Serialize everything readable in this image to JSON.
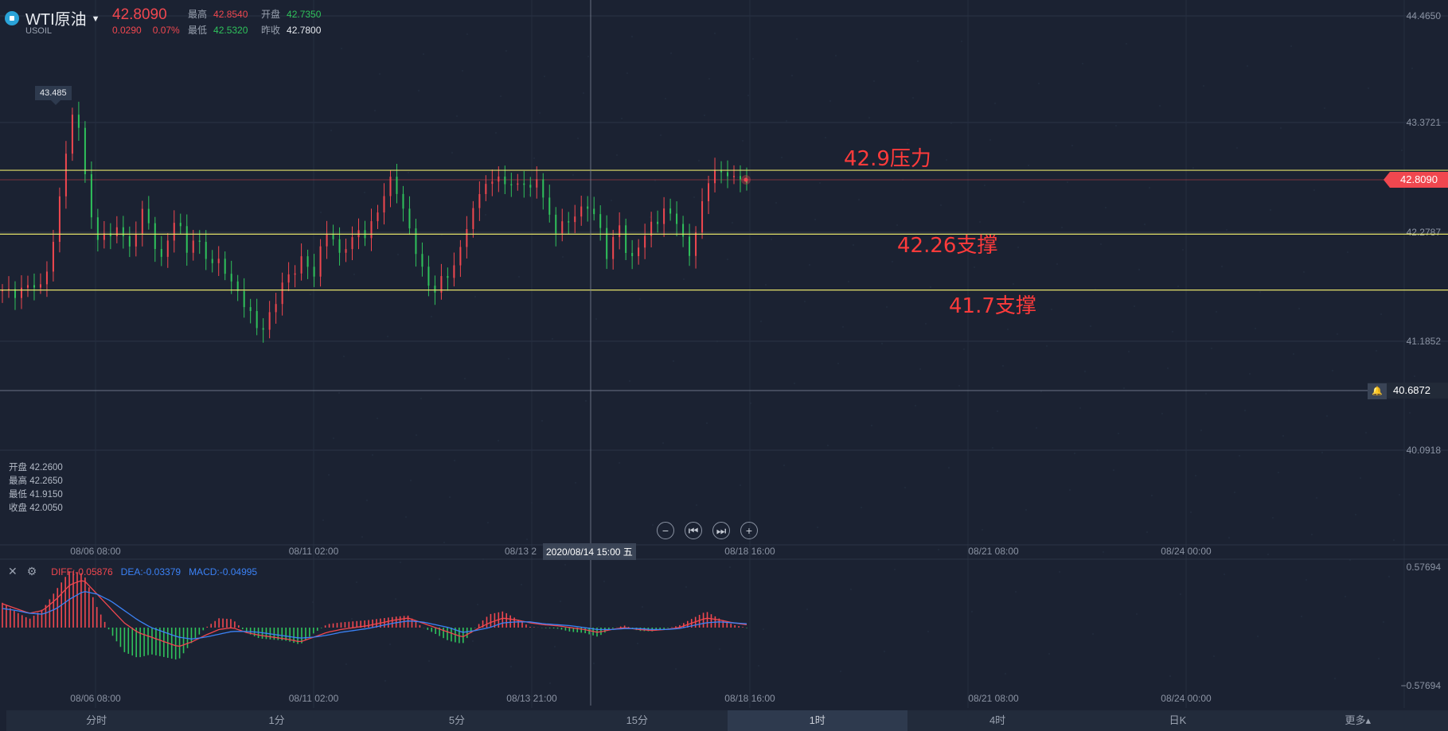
{
  "header": {
    "symbol": "WTI原油",
    "code": "USOIL",
    "price": "42.8090",
    "change": "0.0290",
    "change_pct": "0.07%",
    "high_label": "最高",
    "high": "42.8540",
    "open_label": "开盘",
    "open": "42.7350",
    "low_label": "最低",
    "low": "42.5320",
    "prev_label": "昨收",
    "prev_close": "42.7800"
  },
  "ohlc_info": {
    "open": "开盘 42.2600",
    "high": "最高 42.2650",
    "low": "最低 41.9150",
    "close": "收盘 42.0050"
  },
  "price_axis": [
    "44.4650",
    "43.3721",
    "42.2787",
    "41.1852",
    "40.0918"
  ],
  "current_price_tag": "42.8090",
  "alert_price": "40.6872",
  "max_label": "43.485",
  "annotations": [
    "42.9压力",
    "42.26支撑",
    "41.7支撑"
  ],
  "time_axis": [
    "08/06 08:00",
    "08/11 02:00",
    "08/13 2",
    "08/18 16:00",
    "08/21 08:00",
    "08/24 00:00"
  ],
  "macd_time_axis": [
    "08/06 08:00",
    "08/11 02:00",
    "08/13 21:00",
    "08/18 16:00",
    "08/21 08:00",
    "08/24 00:00"
  ],
  "crosshair_time": "2020/08/14 15:00 五",
  "macd": {
    "diff": "DIFF:-0.05876",
    "dea": "DEA:-0.03379",
    "macd": "MACD:-0.04995",
    "axis_top": "0.57694",
    "axis_bottom": "−0.57694"
  },
  "nav_buttons": [
    "−",
    "⏮",
    "⏭",
    "+"
  ],
  "timeframes": [
    "分时",
    "1分",
    "5分",
    "15分",
    "1时",
    "4时",
    "日K",
    "更多▴"
  ],
  "active_timeframe": "1时",
  "colors": {
    "up": "#f0474f",
    "down": "#2fc25b",
    "level": "#e6e36a",
    "dea": "#3b82f6",
    "bg": "#1b2232"
  },
  "icons": [
    "dropdown-caret-icon",
    "close-icon",
    "settings-icon",
    "bell-icon"
  ],
  "chart_data": {
    "type": "candlestick",
    "price_range": [
      39.6,
      44.6
    ],
    "levels": [
      {
        "label": "42.9压力",
        "value": 42.9
      },
      {
        "label": "42.26支撑",
        "value": 42.26
      },
      {
        "label": "41.7支撑",
        "value": 41.7
      }
    ],
    "close_path": [
      41.7,
      41.68,
      41.66,
      41.7,
      41.74,
      41.76,
      41.72,
      41.9,
      42.2,
      42.6,
      43.1,
      43.45,
      43.3,
      42.9,
      42.4,
      42.2,
      42.3,
      42.2,
      42.35,
      42.25,
      42.1,
      42.3,
      42.5,
      42.35,
      42.15,
      42.0,
      42.2,
      42.4,
      42.3,
      42.1,
      42.2,
      42.15,
      42.05,
      41.95,
      42.0,
      41.9,
      41.75,
      41.7,
      41.55,
      41.45,
      41.35,
      41.3,
      41.45,
      41.6,
      41.75,
      41.85,
      41.9,
      42.0,
      41.95,
      41.85,
      42.1,
      42.3,
      42.2,
      42.05,
      42.15,
      42.2,
      42.3,
      42.25,
      42.35,
      42.5,
      42.65,
      42.8,
      42.7,
      42.5,
      42.3,
      42.1,
      41.9,
      41.75,
      41.7,
      41.8,
      41.85,
      41.95,
      42.1,
      42.35,
      42.5,
      42.65,
      42.8,
      42.75,
      42.85,
      42.78,
      42.72,
      42.8,
      42.75,
      42.7,
      42.85,
      42.6,
      42.45,
      42.3,
      42.35,
      42.4,
      42.45,
      42.5,
      42.55,
      42.45,
      42.3,
      42.05,
      42.2,
      42.35,
      42.1,
      42.0,
      42.15,
      42.25,
      42.35,
      42.4,
      42.5,
      42.45,
      42.4,
      42.2,
      42.05,
      42.3,
      42.55,
      42.8,
      42.9,
      42.85,
      42.88,
      42.82,
      42.8,
      42.81
    ],
    "diff_path": [
      0.25,
      0.2,
      0.15,
      0.18,
      0.3,
      0.45,
      0.5,
      0.35,
      0.2,
      0.05,
      -0.05,
      -0.1,
      -0.15,
      -0.2,
      -0.15,
      -0.08,
      -0.02,
      0.0,
      -0.05,
      -0.08,
      -0.1,
      -0.12,
      -0.15,
      -0.1,
      -0.05,
      -0.02,
      0.0,
      0.02,
      0.05,
      0.08,
      0.1,
      0.05,
      0.0,
      -0.05,
      -0.1,
      -0.02,
      0.05,
      0.1,
      0.08,
      0.05,
      0.03,
      0.02,
      0.0,
      -0.02,
      -0.05,
      -0.02,
      0.0,
      -0.02,
      -0.03,
      -0.02,
      0.0,
      0.05,
      0.1,
      0.08,
      0.05,
      0.03
    ],
    "dea_path": [
      0.2,
      0.18,
      0.15,
      0.14,
      0.2,
      0.3,
      0.38,
      0.35,
      0.28,
      0.18,
      0.08,
      0.0,
      -0.05,
      -0.1,
      -0.12,
      -0.1,
      -0.07,
      -0.04,
      -0.04,
      -0.05,
      -0.07,
      -0.09,
      -0.11,
      -0.1,
      -0.08,
      -0.05,
      -0.03,
      -0.01,
      0.02,
      0.05,
      0.07,
      0.06,
      0.03,
      0.0,
      -0.05,
      -0.03,
      0.0,
      0.05,
      0.06,
      0.06,
      0.04,
      0.03,
      0.02,
      0.0,
      -0.02,
      -0.02,
      -0.01,
      -0.01,
      -0.02,
      -0.02,
      -0.01,
      0.02,
      0.05,
      0.06,
      0.05,
      0.04
    ]
  }
}
